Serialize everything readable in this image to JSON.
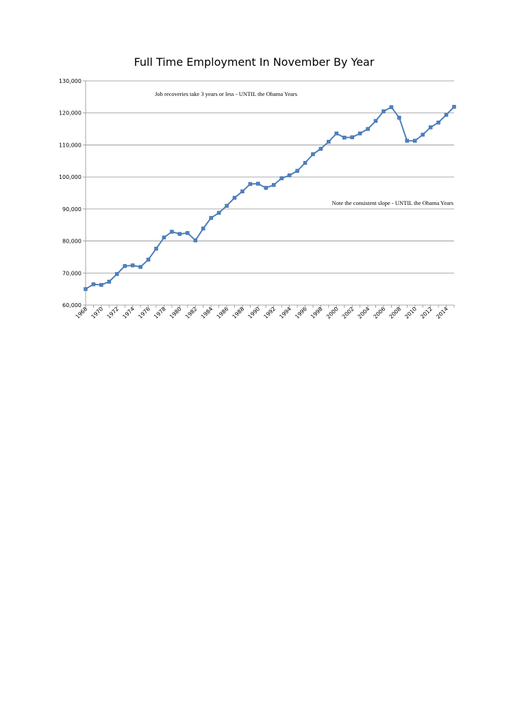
{
  "chart_data": {
    "type": "line",
    "title": "Full Time Employment In November By Year",
    "xlabel": "",
    "ylabel": "",
    "ylim": [
      60000,
      130000
    ],
    "yticks": [
      "60,000",
      "70,000",
      "80,000",
      "90,000",
      "100,000",
      "110,000",
      "120,000",
      "130,000"
    ],
    "xticks": [
      "1968",
      "1970",
      "1972",
      "1974",
      "1976",
      "1978",
      "1980",
      "1982",
      "1984",
      "1986",
      "1988",
      "1990",
      "1992",
      "1994",
      "1996",
      "1998",
      "2000",
      "2002",
      "2004",
      "2006",
      "2008",
      "2010",
      "2012",
      "2014"
    ],
    "grid": true,
    "legend": "none",
    "line_color": "#4a7ebb",
    "marker_color": "#4f81bd",
    "x": [
      1968,
      1969,
      1970,
      1971,
      1972,
      1973,
      1974,
      1975,
      1976,
      1977,
      1978,
      1979,
      1980,
      1981,
      1982,
      1983,
      1984,
      1985,
      1986,
      1987,
      1988,
      1989,
      1990,
      1991,
      1992,
      1993,
      1994,
      1995,
      1996,
      1997,
      1998,
      1999,
      2000,
      2001,
      2002,
      2003,
      2004,
      2005,
      2006,
      2007,
      2008,
      2009,
      2010,
      2011,
      2012,
      2013,
      2014,
      2015
    ],
    "values": [
      65000,
      66500,
      66300,
      67300,
      69700,
      72200,
      72400,
      71900,
      74200,
      77600,
      81100,
      82900,
      82200,
      82500,
      80200,
      83900,
      87200,
      88800,
      91000,
      93500,
      95500,
      97800,
      97900,
      96600,
      97500,
      99600,
      100500,
      101900,
      104400,
      107100,
      108800,
      111000,
      113600,
      112300,
      112400,
      113600,
      115000,
      117500,
      120500,
      121800,
      118500,
      111300,
      111300,
      113200,
      115500,
      117000,
      119400,
      121900
    ],
    "annotations": [
      "Job recoveries take 3 years or less - UNTIL the Obama Years",
      "Note the consistent slope - UNTIL the Obama Years"
    ]
  }
}
